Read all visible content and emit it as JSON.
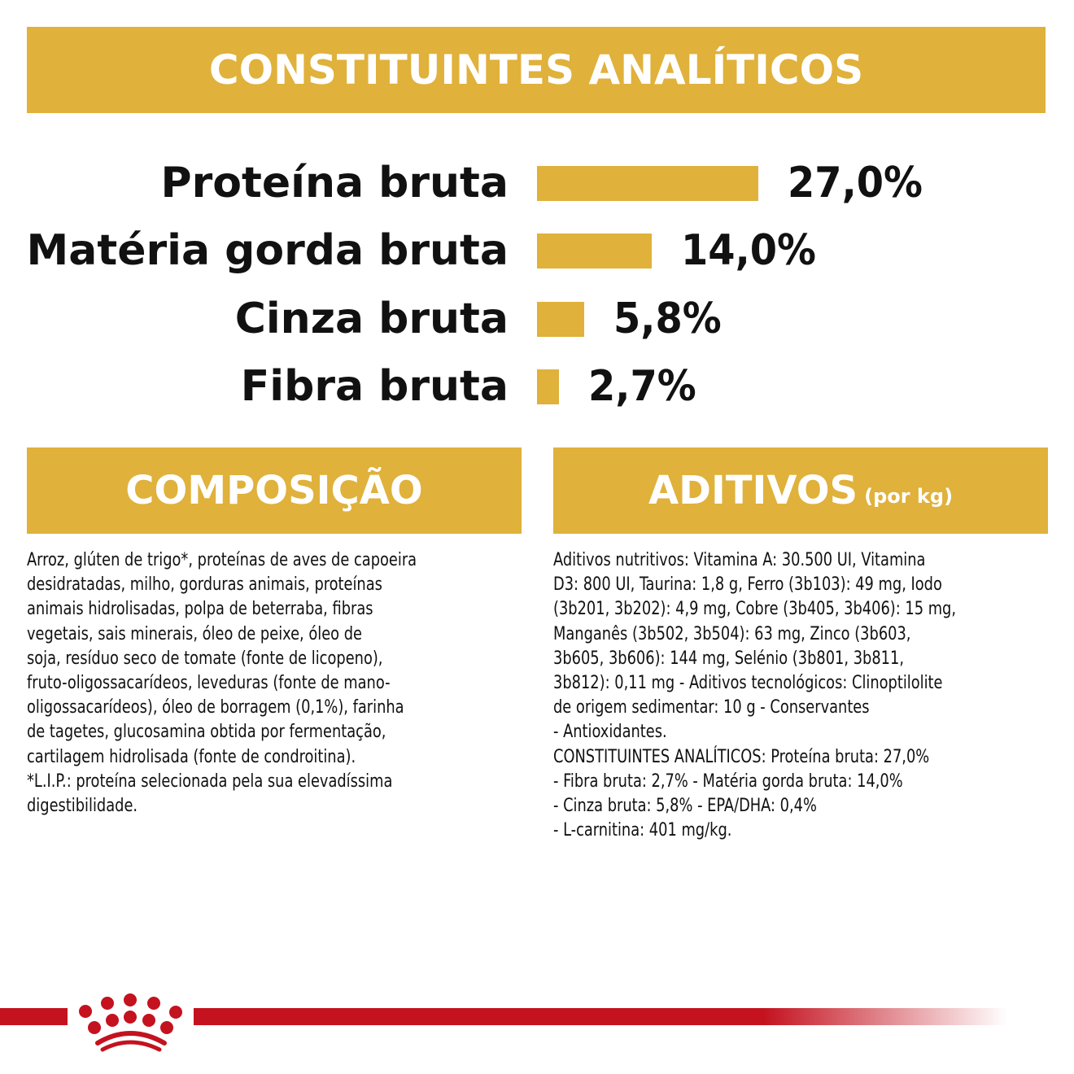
{
  "header": {
    "title": "CONSTITUINTES ANALÍTICOS"
  },
  "chart_data": {
    "type": "bar",
    "title": "CONSTITUINTES ANALÍTICOS",
    "categories": [
      "Proteína bruta",
      "Matéria gorda bruta",
      "Cinza bruta",
      "Fibra bruta"
    ],
    "values": [
      27.0,
      14.0,
      5.8,
      2.7
    ],
    "value_labels": [
      "27,0%",
      "14,0%",
      "5,8%",
      "2,7%"
    ],
    "unit": "%",
    "color": "#e0b13b"
  },
  "composicao": {
    "title": "COMPOSIÇÃO",
    "lines": [
      "Arroz, glúten de trigo*, proteínas de aves de capoeira",
      "desidratadas, milho, gorduras animais, proteínas",
      "animais hidrolisadas, polpa de beterraba, fibras",
      "vegetais, sais minerais, óleo de peixe, óleo de",
      "soja, resíduo seco de tomate (fonte de licopeno),",
      "fruto-oligossacarídeos, leveduras (fonte de mano-",
      "oligossacarídeos), óleo de borragem (0,1%), farinha",
      "de tagetes, glucosamina obtida por fermentação,",
      "cartilagem hidrolisada (fonte de condroitina).",
      "*L.I.P.: proteína selecionada pela sua elevadíssima",
      "digestibilidade."
    ]
  },
  "aditivos": {
    "title": "ADITIVOS",
    "subtitle": "(por kg)",
    "lines": [
      "Aditivos nutritivos: Vitamina A: 30.500 UI, Vitamina",
      "D3: 800 UI, Taurina: 1,8 g, Ferro (3b103): 49 mg, Iodo",
      "(3b201, 3b202): 4,9 mg, Cobre (3b405, 3b406): 15 mg,",
      "Manganês (3b502, 3b504): 63 mg, Zinco (3b603,",
      "3b605, 3b606): 144 mg, Selénio (3b801, 3b811,",
      "3b812): 0,11 mg - Aditivos tecnológicos: Clinoptilolite",
      "de origem sedimentar: 10 g - Conservantes",
      "- Antioxidantes.",
      "CONSTITUINTES ANALÍTICOS: Proteína bruta: 27,0%",
      "- Fibra bruta: 2,7% - Matéria gorda bruta: 14,0%",
      "- Cinza bruta: 5,8% - EPA/DHA: 0,4%",
      "- L-carnitina: 401 mg/kg."
    ]
  },
  "footer": {
    "logo": "royal-canin-crown",
    "color": "#c4121f"
  }
}
